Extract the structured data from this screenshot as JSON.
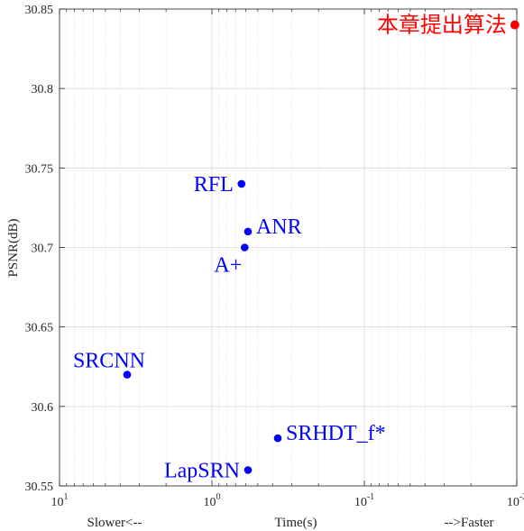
{
  "chart_data": {
    "type": "scatter",
    "xlabel": "Time(s)",
    "xlabel_left": "Slower<--",
    "xlabel_right": "-->Faster",
    "ylabel": "PSNR(dB)",
    "x_scale": "log",
    "x_reversed": true,
    "xlim": [
      10,
      0.01
    ],
    "ylim": [
      30.55,
      30.85
    ],
    "grid": true,
    "x_ticks": [
      {
        "value": 10,
        "base": "10",
        "exp": "1"
      },
      {
        "value": 1,
        "base": "10",
        "exp": "0"
      },
      {
        "value": 0.1,
        "base": "10",
        "exp": "-1"
      },
      {
        "value": 0.01,
        "base": "10",
        "exp": "-2"
      }
    ],
    "y_ticks": [
      {
        "value": 30.55,
        "label": "30.55"
      },
      {
        "value": 30.6,
        "label": "30.6"
      },
      {
        "value": 30.65,
        "label": "30.65"
      },
      {
        "value": 30.7,
        "label": "30.7"
      },
      {
        "value": 30.75,
        "label": "30.75"
      },
      {
        "value": 30.8,
        "label": "30.8"
      },
      {
        "value": 30.85,
        "label": "30.85"
      }
    ],
    "points": [
      {
        "label": "RFL",
        "x": 0.64,
        "y": 30.74,
        "color": "#0000ff",
        "label_side": "left"
      },
      {
        "label": "ANR",
        "x": 0.58,
        "y": 30.71,
        "color": "#0000ff",
        "label_side": "right"
      },
      {
        "label": "A+",
        "x": 0.61,
        "y": 30.7,
        "color": "#0000ff",
        "label_side": "below-left"
      },
      {
        "label": "SRCNN",
        "x": 3.6,
        "y": 30.62,
        "color": "#0000ff",
        "label_side": "above-left"
      },
      {
        "label": "SRHDT_f*",
        "x": 0.37,
        "y": 30.58,
        "color": "#0000ff",
        "label_side": "right"
      },
      {
        "label": "LapSRN",
        "x": 0.58,
        "y": 30.56,
        "color": "#0000ff",
        "label_side": "left"
      },
      {
        "label": "本章提出算法",
        "x": 0.0103,
        "y": 30.84,
        "color": "#ff0000",
        "label_side": "left"
      }
    ]
  }
}
